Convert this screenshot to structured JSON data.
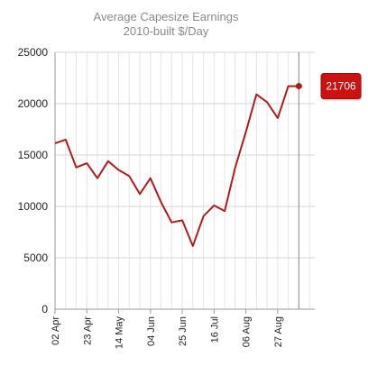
{
  "chart_data": {
    "type": "line",
    "title": "Average Capesize Earnings",
    "subtitle": "2010-built $/Day",
    "xlabel": "",
    "ylabel": "",
    "ylim": [
      0,
      25000
    ],
    "y_ticks": [
      0,
      5000,
      10000,
      15000,
      20000,
      25000
    ],
    "x_tick_labels": [
      "02 Apr",
      "23 Apr",
      "14 May",
      "04 Jun",
      "25 Jun",
      "16 Jul",
      "06 Aug",
      "27 Aug"
    ],
    "x_tick_positions": [
      0,
      3,
      6,
      9,
      12,
      15,
      18,
      21
    ],
    "x_range": [
      0,
      24.5
    ],
    "grid": true,
    "legend": "none",
    "series": [
      {
        "values": [
          16150,
          16500,
          13800,
          14200,
          12750,
          14400,
          13550,
          12950,
          11200,
          12750,
          10400,
          8450,
          8650,
          6150,
          9050,
          10100,
          9550,
          13800,
          17250,
          20900,
          20150,
          18600,
          21700,
          21706
        ],
        "color": "#b31b1b"
      }
    ],
    "tooltip": {
      "value": "21706",
      "color": "#cc1111"
    },
    "crosshair_at_index": 23
  }
}
